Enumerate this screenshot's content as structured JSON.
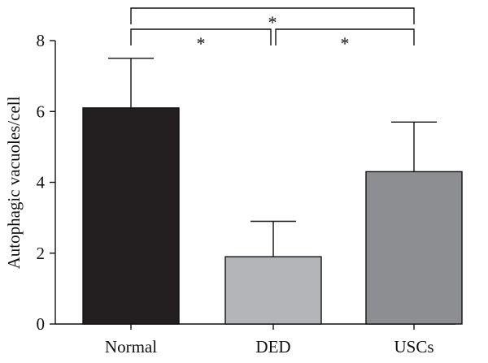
{
  "chart_data": {
    "type": "bar",
    "title": "",
    "xlabel": "",
    "ylabel": "Autophagic vacuoles/cell",
    "ylim": [
      0,
      8
    ],
    "yticks": [
      0,
      2,
      4,
      6,
      8
    ],
    "grid": false,
    "categories": [
      "Normal",
      "DED",
      "USCs"
    ],
    "values": [
      6.1,
      1.9,
      4.3
    ],
    "error_upper": [
      1.4,
      1.0,
      1.4
    ],
    "bar_colors": [
      "#231f20",
      "#b3b5b8",
      "#8c8e91"
    ],
    "significance": [
      {
        "from": 0,
        "to": 1,
        "label": "*"
      },
      {
        "from": 1,
        "to": 2,
        "label": "*"
      },
      {
        "from": 0,
        "to": 2,
        "label": "*"
      }
    ]
  }
}
